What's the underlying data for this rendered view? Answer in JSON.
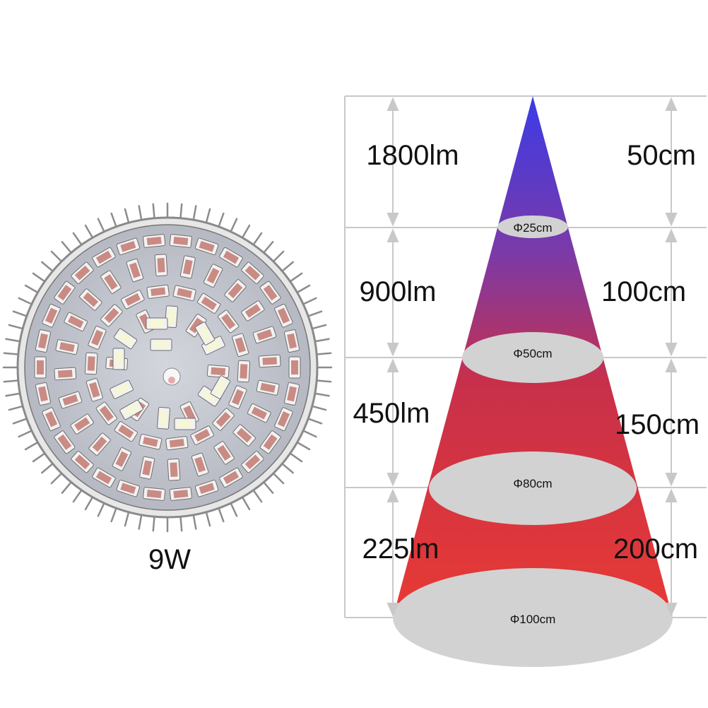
{
  "product": {
    "power_label": "9W",
    "led_colors": {
      "red": "#c98b84",
      "white": "#f4f4d8",
      "board": "#c4c7cf",
      "rim": "#9a9a9a"
    }
  },
  "light_cone": {
    "colors": {
      "top": "#3b3be6",
      "middle": "#c8304a",
      "bottom": "#e83a34",
      "ellipse": "#d2d2d2",
      "grid": "#c8c8c8",
      "arrow": "#c8c8c8"
    },
    "rows": [
      {
        "lumen": "1800lm",
        "distance": "50cm",
        "diameter": "Φ25cm"
      },
      {
        "lumen": "900lm",
        "distance": "100cm",
        "diameter": "Φ50cm"
      },
      {
        "lumen": "450lm",
        "distance": "150cm",
        "diameter": "Φ80cm"
      },
      {
        "lumen": "225lm",
        "distance": "200cm",
        "diameter": "Φ100cm"
      }
    ]
  }
}
